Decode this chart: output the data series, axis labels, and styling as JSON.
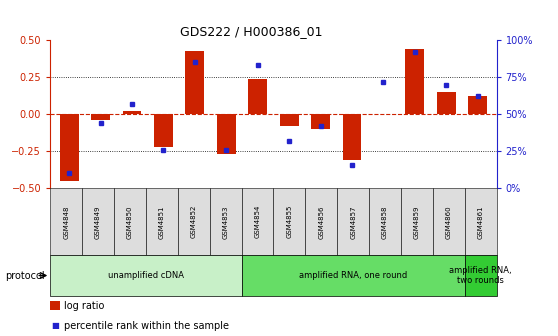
{
  "title": "GDS222 / H000386_01",
  "samples": [
    "GSM4848",
    "GSM4849",
    "GSM4850",
    "GSM4851",
    "GSM4852",
    "GSM4853",
    "GSM4854",
    "GSM4855",
    "GSM4856",
    "GSM4857",
    "GSM4858",
    "GSM4859",
    "GSM4860",
    "GSM4861"
  ],
  "log_ratio": [
    -0.45,
    -0.04,
    0.02,
    -0.22,
    0.43,
    -0.27,
    0.24,
    -0.08,
    -0.1,
    -0.31,
    0.0,
    0.44,
    0.15,
    0.12
  ],
  "percentile": [
    10,
    44,
    57,
    26,
    85,
    26,
    83,
    32,
    42,
    16,
    72,
    92,
    70,
    62
  ],
  "protocol_groups": [
    {
      "label": "unamplified cDNA",
      "start": 0,
      "end": 5,
      "color": "#c8f0c8"
    },
    {
      "label": "amplified RNA, one round",
      "start": 6,
      "end": 12,
      "color": "#66dd66"
    },
    {
      "label": "amplified RNA,\ntwo rounds",
      "start": 13,
      "end": 13,
      "color": "#33cc33"
    }
  ],
  "bar_color": "#cc2200",
  "dot_color": "#2222cc",
  "ylim_left": [
    -0.5,
    0.5
  ],
  "ylim_right": [
    0,
    100
  ],
  "yticks_left": [
    -0.5,
    -0.25,
    0.0,
    0.25,
    0.5
  ],
  "yticks_right": [
    0,
    25,
    50,
    75,
    100
  ],
  "ytick_labels_right": [
    "0%",
    "25%",
    "50%",
    "75%",
    "100%"
  ],
  "bg_color": "#ffffff",
  "bar_color_red": "#cc2200",
  "dot_color_blue": "#2222cc",
  "tick_color_left": "#cc2200",
  "tick_color_right": "#2222cc",
  "sample_box_color": "#dddddd",
  "bar_width": 0.6
}
